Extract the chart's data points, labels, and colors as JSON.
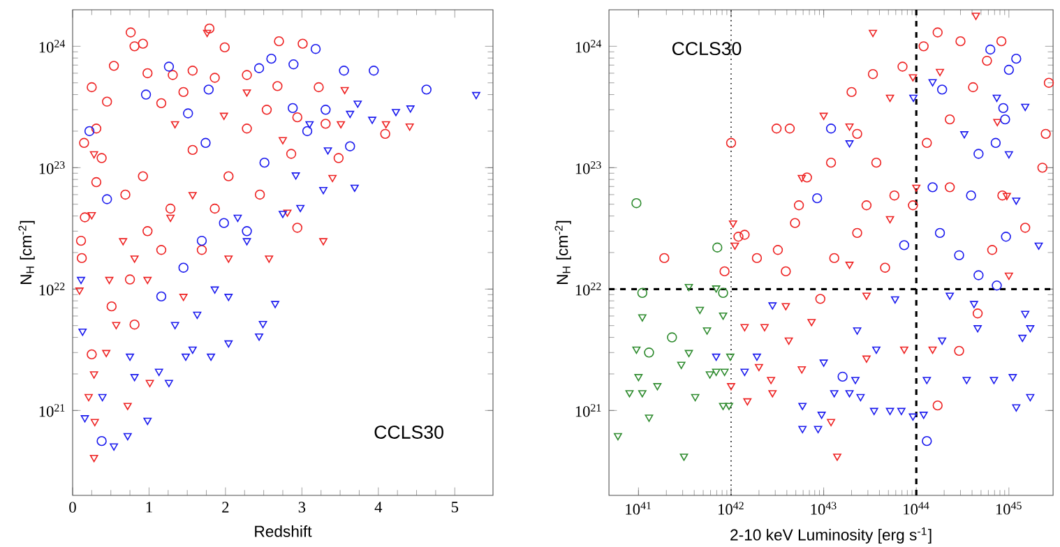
{
  "chart_data": [
    {
      "type": "scatter",
      "xlabel": "Redshift",
      "ylabel": "N$_{H}$ [cm$^{-2}$]",
      "log": "y",
      "xlim": [
        0,
        5.5
      ],
      "ylim": [
        2e+20,
        2e+24
      ],
      "xticks": [
        0,
        1,
        2,
        3,
        4,
        5
      ],
      "yticks": [
        {
          "value": 1e+21,
          "label": "10$^{21}$"
        },
        {
          "value": 1e+22,
          "label": "10$^{22}$"
        },
        {
          "value": 1e+23,
          "label": "10$^{23}$"
        },
        {
          "value": 1e+24,
          "label": "10$^{24}$"
        }
      ],
      "annotations": [
        "CCLS30"
      ],
      "series": [
        {
          "color": "#ee2222",
          "marker": "circle",
          "x": [
            0.76,
            1.79,
            0.81,
            0.92,
            2.7,
            3.01,
            1.99,
            0.54,
            0.25,
            0.45,
            0.15,
            0.31,
            0.38,
            0.31,
            0.16,
            0.12,
            0.11,
            0.25,
            0.98,
            1.16,
            1.31,
            1.45,
            1.57,
            1.86,
            2.28,
            2.68,
            2.54,
            2.94,
            3.31,
            4.09,
            3.48,
            2.94,
            0.75,
            0.98,
            1.57,
            2.04,
            1.28,
            0.69,
            2.45,
            2.86,
            0.81,
            0.51,
            1.16,
            1.69,
            1.86,
            2.28,
            3.22,
            0.92
          ],
          "values": [
            1.3e+24,
            1.4e+24,
            1e+24,
            1.05e+24,
            1.1e+24,
            1.05e+24,
            9.8e+23,
            6.9e+23,
            4.6e+23,
            3.5e+23,
            1.6e+23,
            2.1e+23,
            1.2e+23,
            7.6e+22,
            3.9e+22,
            1.8e+22,
            2.5e+22,
            2.9e+21,
            6e+23,
            3.4e+23,
            5.8e+23,
            4.2e+23,
            6.3e+23,
            5.5e+23,
            5.8e+23,
            4.7e+23,
            3e+23,
            2.6e+23,
            2.3e+23,
            1.9e+23,
            1.2e+23,
            3.2e+22,
            1.2e+22,
            3e+22,
            1.4e+23,
            8.5e+22,
            4.6e+22,
            6e+22,
            6e+22,
            1.3e+23,
            5.1e+21,
            7.2e+21,
            2.1e+22,
            2.1e+22,
            4.6e+22,
            2.1e+23,
            4.6e+23,
            8.5e+22
          ]
        },
        {
          "color": "#ee2222",
          "marker": "triangle",
          "x": [
            1.76,
            0.25,
            0.28,
            0.09,
            0.28,
            0.21,
            0.29,
            0.28,
            0.44,
            0.72,
            1.01,
            0.57,
            0.98,
            1.28,
            1.57,
            1.98,
            2.28,
            2.75,
            3.51,
            4.1,
            4.41,
            3.56,
            3.28,
            3.4,
            2.57,
            2.04,
            1.45,
            0.81,
            0.48,
            0.66,
            1.34,
            2.81
          ],
          "values": [
            1.3e+24,
            4.1e+22,
            1.3e+23,
            9.8e+21,
            2e+21,
            1.3e+21,
            8.1e+20,
            4.1e+20,
            3e+21,
            1.1e+21,
            1.7e+21,
            5.1e+21,
            1.2e+22,
            3.9e+22,
            6e+22,
            2.7e+23,
            4.2e+23,
            1.7e+23,
            2.3e+23,
            2.3e+23,
            2.2e+23,
            4.4e+23,
            2.5e+22,
            8.3e+22,
            1.8e+22,
            1.8e+22,
            8.7e+21,
            1.8e+22,
            1.2e+22,
            2.5e+22,
            2.3e+23,
            4.3e+22
          ]
        },
        {
          "color": "#1a1aee",
          "marker": "circle",
          "x": [
            1.26,
            0.96,
            0.22,
            1.51,
            1.78,
            2.44,
            2.6,
            2.89,
            3.18,
            3.55,
            3.94,
            4.63,
            3.07,
            3.63,
            2.88,
            3.31,
            1.74,
            0.45,
            0.38,
            1.69,
            1.98,
            1.45,
            2.28,
            2.51,
            1.16
          ],
          "values": [
            6.8e+23,
            4e+23,
            2e+23,
            2.8e+23,
            4.4e+23,
            6.6e+23,
            7.9e+23,
            7.1e+23,
            9.5e+23,
            6.3e+23,
            6.3e+23,
            4.4e+23,
            2e+23,
            1.5e+23,
            3.1e+23,
            3e+23,
            1.6e+23,
            5.5e+22,
            5.6e+20,
            2.5e+22,
            3.5e+22,
            1.5e+22,
            3e+22,
            1.1e+23,
            8.7e+21
          ]
        },
        {
          "color": "#1a1aee",
          "marker": "triangle",
          "x": [
            5.28,
            4.42,
            4.23,
            3.92,
            3.73,
            3.63,
            3.34,
            3.69,
            3.28,
            2.98,
            2.75,
            2.65,
            2.49,
            2.44,
            2.04,
            1.81,
            1.57,
            1.48,
            1.26,
            1.13,
            0.98,
            0.72,
            0.54,
            0.16,
            0.13,
            0.11,
            0.39,
            0.75,
            0.81,
            1.34,
            1.86,
            2.28,
            1.63,
            2.04,
            2.92,
            3.1,
            2.16
          ],
          "values": [
            4e+23,
            3.1e+23,
            2.9e+23,
            2.5e+23,
            3.4e+23,
            2.8e+23,
            1.4e+23,
            6.9e+22,
            6.6e+22,
            4.7e+22,
            4.2e+22,
            7.6e+21,
            5.2e+21,
            4.1e+21,
            3.6e+21,
            2.8e+21,
            3.2e+21,
            2.8e+21,
            1.7e+21,
            2.1e+21,
            8.3e+20,
            6.2e+20,
            5.1e+20,
            8.7e+20,
            4.5e+21,
            1.2e+22,
            1.3e+21,
            2.8e+21,
            1.9e+21,
            5.1e+21,
            1e+22,
            2.5e+22,
            6.2e+21,
            8.7e+21,
            8.7e+22,
            2.3e+23,
            3.9e+22
          ]
        }
      ]
    },
    {
      "type": "scatter",
      "xlabel": "2-10 keV Luminosity [erg s$^{-1}$]",
      "ylabel": "N$_{H}$ [cm$^{-2}$]",
      "log": "xy",
      "xlim": [
        4.8e+40,
        3e+45
      ],
      "ylim": [
        2e+20,
        2e+24
      ],
      "xticks": [
        {
          "value": 1e+41,
          "label": "10$^{41}$"
        },
        {
          "value": 1e+42,
          "label": "10$^{42}$"
        },
        {
          "value": 1e+43,
          "label": "10$^{43}$"
        },
        {
          "value": 1e+44,
          "label": "10$^{44}$"
        },
        {
          "value": 1e+45,
          "label": "10$^{45}$"
        }
      ],
      "yticks": [
        {
          "value": 1e+21,
          "label": "10$^{21}$"
        },
        {
          "value": 1e+22,
          "label": "10$^{22}$"
        },
        {
          "value": 1e+23,
          "label": "10$^{23}$"
        },
        {
          "value": 1e+24,
          "label": "10$^{24}$"
        }
      ],
      "annotations": [
        "CCLS30"
      ],
      "ref_lines": [
        {
          "axis": "x",
          "value": 1e+42,
          "color": "#000000",
          "line_style": "dotted"
        },
        {
          "axis": "x",
          "value": 1e+44,
          "color": "#000000",
          "line_style": "dashed"
        },
        {
          "axis": "y",
          "value": 1e+22,
          "color": "#000000",
          "line_style": "dashed"
        }
      ],
      "series": [
        {
          "color": "#2e8b2e",
          "marker": "circle",
          "x": [
            9.5e+40,
            7.1e+41,
            1.1e+41,
            2.3e+41,
            1.3e+41,
            8.2e+41
          ],
          "values": [
            5.1e+22,
            2.2e+22,
            9.3e+21,
            4e+21,
            3e+21,
            9.3e+21
          ]
        },
        {
          "color": "#2e8b2e",
          "marker": "triangle",
          "x": [
            6e+40,
            3.1e+41,
            1.3e+41,
            8e+40,
            1.1e+41,
            9.5e+40,
            1e+41,
            1.6e+41,
            1.1e+41,
            2.9e+41,
            3.5e+41,
            4.1e+41,
            5.9e+41,
            6.9e+41,
            8.5e+41,
            8.2e+41,
            9.5e+41,
            5.5e+41,
            4.6e+41,
            8.2e+41,
            3.5e+41,
            6.9e+41,
            9.8e+41
          ],
          "values": [
            6.2e+20,
            4.2e+20,
            8.8e+20,
            1.4e+21,
            1.4e+21,
            3.2e+21,
            1.9e+21,
            1.6e+21,
            5.9e+21,
            2.4e+21,
            3e+21,
            1.3e+21,
            2e+21,
            2.1e+21,
            2.1e+21,
            1.1e+21,
            1.1e+21,
            4.6e+21,
            6.8e+21,
            6.1e+21,
            1.05e+22,
            1.02e+22,
            2.8e+21
          ]
        },
        {
          "color": "#ee2222",
          "marker": "circle",
          "x": [
            1e+42,
            1.9e+41,
            8.5e+41,
            1.2e+42,
            1.4e+42,
            3.1e+42,
            4.3e+42,
            1.9e+42,
            3.2e+42,
            3.9e+42,
            5.4e+42,
            4.9e+42,
            6.6e+42,
            1.2e+43,
            2e+43,
            3.4e+43,
            7.1e+43,
            1.2e+44,
            1.7e+44,
            3e+44,
            8.3e+44,
            2.7e+45,
            2.5e+45,
            2.3e+45,
            1.5e+45,
            8.5e+44,
            1.7e+44,
            2.9e+44,
            4.6e+44,
            2.3e+43,
            3.7e+43,
            5.8e+43,
            2.3e+43,
            1.3e+43,
            4.6e+43,
            1.3e+44,
            2.3e+44,
            4.1e+44,
            5.8e+44,
            9.2e+42,
            2.9e+43,
            9.2e+43,
            2.3e+44,
            6.6e+44
          ],
          "values": [
            1.6e+23,
            1.8e+22,
            1.4e+22,
            2.7e+22,
            2.8e+22,
            2.1e+23,
            2.1e+23,
            1.8e+22,
            2.1e+22,
            1.4e+22,
            4.9e+22,
            3.5e+22,
            8.3e+22,
            1.1e+23,
            4.2e+23,
            5.9e+23,
            6.8e+23,
            1e+24,
            1.3e+24,
            1.1e+24,
            1.1e+24,
            5e+23,
            1.9e+23,
            1e+23,
            3.2e+22,
            5.9e+22,
            1.1e+21,
            3.1e+21,
            6.3e+21,
            1.9e+23,
            1.1e+23,
            5.9e+22,
            2.9e+22,
            1.8e+22,
            1.5e+22,
            1.6e+23,
            2.5e+23,
            4.6e+23,
            7.6e+23,
            8.3e+21,
            4.9e+22,
            4.9e+22,
            6.9e+22,
            2.1e+22
          ]
        },
        {
          "color": "#ee2222",
          "marker": "triangle",
          "x": [
            3.4e+43,
            4.4e+44,
            1.05e+42,
            1.1e+42,
            1e+42,
            1.5e+42,
            2e+42,
            2.8e+42,
            3.9e+42,
            1.4e+42,
            2.3e+42,
            2.7e+42,
            5.8e+42,
            1.4e+43,
            1.2e+43,
            5.8e+42,
            1e+43,
            1.9e+43,
            5.2e+43,
            9.2e+43,
            1.8e+44,
            7.5e+44,
            1e+45,
            9.5e+44,
            1.9e+43,
            2.9e+43,
            2.9e+43,
            7.4e+43,
            1.5e+44,
            7.4e+42,
            4.2e+42,
            5.2e+43,
            1e+44
          ],
          "values": [
            1.3e+24,
            1.8e+24,
            3.5e+22,
            2.3e+22,
            1.6e+21,
            1.2e+21,
            2.3e+21,
            1.4e+21,
            7.3e+21,
            4.9e+21,
            4.9e+21,
            1.8e+21,
            2.2e+21,
            4.2e+20,
            8.1e+20,
            8.3e+22,
            2.7e+23,
            2.2e+23,
            3.8e+23,
            5.6e+23,
            6.2e+23,
            2.4e+23,
            1.3e+22,
            5.9e+22,
            1.6e+22,
            8.9e+21,
            2.7e+21,
            3.2e+21,
            3.2e+21,
            5.4e+21,
            3.8e+21,
            3.8e+22,
            6.9e+22
          ]
        },
        {
          "color": "#1a1aee",
          "marker": "circle",
          "x": [
            8.5e+42,
            1.2e+43,
            1.6e+43,
            1.3e+44,
            6.3e+44,
            1.2e+45,
            1e+45,
            8.7e+44,
            9.1e+44,
            7.2e+44,
            4.7e+44,
            3.9e+44,
            9.3e+44,
            1.9e+44,
            7.4e+44,
            4.7e+44,
            1.8e+44,
            2.9e+44,
            1.5e+44,
            7.4e+43
          ],
          "values": [
            5.6e+22,
            2.1e+23,
            1.9e+21,
            5.6e+20,
            9.4e+23,
            7.9e+23,
            6.4e+23,
            3.1e+23,
            2.5e+23,
            1.6e+23,
            1.3e+23,
            5.9e+22,
            2.7e+22,
            4.4e+23,
            1.07e+22,
            1.3e+22,
            2.9e+22,
            1.9e+22,
            6.9e+22,
            2.3e+22
          ]
        },
        {
          "color": "#1a1aee",
          "marker": "triangle",
          "x": [
            2.1e+45,
            1.5e+45,
            1.7e+45,
            1.4e+45,
            1.2e+45,
            1e+45,
            1.5e+45,
            1.7e+45,
            1.2e+45,
            1.1e+45,
            6.9e+44,
            3.5e+44,
            1.9e+44,
            4.6e+44,
            1.3e+44,
            1.2e+44,
            9.2e+43,
            6.9e+43,
            5.2e+43,
            3.5e+43,
            2.5e+43,
            1.9e+43,
            1.3e+43,
            8.7e+42,
            5.9e+42,
            5.9e+42,
            9.5e+42,
            2.2e+43,
            1e+43,
            1.4e+42,
            6.9e+41,
            1.9e+42,
            2.8e+42,
            1.9e+43,
            9.3e+43,
            1.5e+44,
            3.3e+44,
            7.4e+44,
            2.3e+44,
            5.9e+43,
            3.7e+43,
            2.3e+43,
            4.2e+44
          ],
          "values": [
            2.3e+22,
            6.3e+21,
            4.8e+21,
            4e+21,
            5.4e+22,
            1.3e+23,
            3.2e+23,
            1.3e+21,
            1.07e+21,
            1.9e+21,
            1.8e+21,
            1.8e+21,
            3.8e+21,
            4.8e+21,
            1.8e+21,
            9.3e+20,
            9e+20,
            1e+21,
            1e+21,
            1e+21,
            1.3e+21,
            1.4e+21,
            1.4e+21,
            7.1e+20,
            7.1e+20,
            1.1e+21,
            9.3e+20,
            1.8e+21,
            2.5e+21,
            2.1e+21,
            2.8e+21,
            2.8e+21,
            7.4e+21,
            1.6e+23,
            3.8e+23,
            5.1e+23,
            1.9e+23,
            3.8e+23,
            8.9e+21,
            8.3e+21,
            3.2e+21,
            4.6e+21,
            7.6e+21
          ]
        }
      ]
    }
  ]
}
